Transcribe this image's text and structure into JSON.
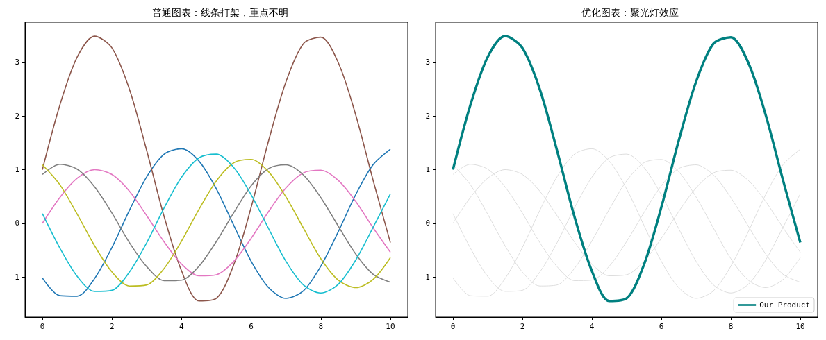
{
  "chart_data": [
    {
      "type": "line",
      "title": "普通图表：线条打架，重点不明",
      "x": [
        0,
        0.5,
        1,
        1.5,
        2,
        2.5,
        3,
        3.5,
        4,
        4.5,
        5,
        5.5,
        6,
        6.5,
        7,
        7.5,
        8,
        8.5,
        9,
        9.5,
        10
      ],
      "series": [
        {
          "color": "#1f77b4",
          "values": [
            -1.02,
            -1.35,
            -1.36,
            -1.03,
            -0.45,
            0.24,
            0.87,
            1.29,
            1.39,
            1.16,
            0.64,
            -0.04,
            -0.71,
            -1.2,
            -1.4,
            -1.26,
            -0.8,
            -0.16,
            0.53,
            1.09,
            1.38
          ]
        },
        {
          "color": "#8c564b",
          "values": [
            1,
            2.2,
            3.1,
            3.49,
            3.27,
            2.5,
            1.35,
            0.12,
            -0.89,
            -1.45,
            -1.4,
            -0.77,
            0.3,
            1.54,
            2.64,
            3.35,
            3.47,
            3.0,
            2.03,
            0.81,
            -0.36
          ]
        },
        {
          "color": "#e377c2",
          "values": [
            0,
            0.48,
            0.84,
            1.0,
            0.91,
            0.6,
            0.14,
            -0.35,
            -0.76,
            -0.98,
            -0.96,
            -0.71,
            -0.28,
            0.22,
            0.66,
            0.94,
            0.99,
            0.8,
            0.41,
            -0.08,
            -0.54
          ]
        },
        {
          "color": "#7f7f7f",
          "values": [
            0.91,
            1.1,
            1.01,
            0.68,
            0.19,
            -0.36,
            -0.81,
            -1.07,
            -1.06,
            -0.8,
            -0.34,
            0.2,
            0.7,
            1.02,
            1.09,
            0.9,
            0.48,
            -0.05,
            -0.57,
            -0.95,
            -1.1
          ]
        },
        {
          "color": "#bcbd22",
          "values": [
            1.09,
            0.72,
            0.17,
            -0.42,
            -0.91,
            -1.17,
            -1.15,
            -0.84,
            -0.33,
            0.26,
            0.79,
            1.13,
            1.19,
            0.96,
            0.49,
            -0.09,
            -0.66,
            -1.06,
            -1.2,
            -1.05,
            -0.64
          ]
        },
        {
          "color": "#17becf",
          "values": [
            0.18,
            -0.46,
            -0.99,
            -1.27,
            -1.25,
            -0.91,
            -0.36,
            0.29,
            0.86,
            1.22,
            1.29,
            1.04,
            0.53,
            -0.1,
            -0.71,
            -1.15,
            -1.3,
            -1.14,
            -0.69,
            -0.08,
            0.55
          ]
        }
      ],
      "xlim": [
        -0.5,
        10.5
      ],
      "ylim": [
        -1.75,
        3.75
      ],
      "xticks": [
        0,
        2,
        4,
        6,
        8,
        10
      ],
      "yticks": [
        -1,
        0,
        1,
        2,
        3
      ],
      "grid": false,
      "legend": false
    },
    {
      "type": "line",
      "title": "优化图表：聚光灯效应",
      "x": [
        0,
        0.5,
        1,
        1.5,
        2,
        2.5,
        3,
        3.5,
        4,
        4.5,
        5,
        5.5,
        6,
        6.5,
        7,
        7.5,
        8,
        8.5,
        9,
        9.5,
        10
      ],
      "series": [
        {
          "color": "#dddddd",
          "values": [
            -1.02,
            -1.35,
            -1.36,
            -1.03,
            -0.45,
            0.24,
            0.87,
            1.29,
            1.39,
            1.16,
            0.64,
            -0.04,
            -0.71,
            -1.2,
            -1.4,
            -1.26,
            -0.8,
            -0.16,
            0.53,
            1.09,
            1.38
          ]
        },
        {
          "color": "#dddddd",
          "values": [
            0,
            0.48,
            0.84,
            1.0,
            0.91,
            0.6,
            0.14,
            -0.35,
            -0.76,
            -0.98,
            -0.96,
            -0.71,
            -0.28,
            0.22,
            0.66,
            0.94,
            0.99,
            0.8,
            0.41,
            -0.08,
            -0.54
          ]
        },
        {
          "color": "#dddddd",
          "values": [
            0.91,
            1.1,
            1.01,
            0.68,
            0.19,
            -0.36,
            -0.81,
            -1.07,
            -1.06,
            -0.8,
            -0.34,
            0.2,
            0.7,
            1.02,
            1.09,
            0.9,
            0.48,
            -0.05,
            -0.57,
            -0.95,
            -1.1
          ]
        },
        {
          "color": "#dddddd",
          "values": [
            1.09,
            0.72,
            0.17,
            -0.42,
            -0.91,
            -1.17,
            -1.15,
            -0.84,
            -0.33,
            0.26,
            0.79,
            1.13,
            1.19,
            0.96,
            0.49,
            -0.09,
            -0.66,
            -1.06,
            -1.2,
            -1.05,
            -0.64
          ]
        },
        {
          "color": "#dddddd",
          "values": [
            0.18,
            -0.46,
            -0.99,
            -1.27,
            -1.25,
            -0.91,
            -0.36,
            0.29,
            0.86,
            1.22,
            1.29,
            1.04,
            0.53,
            -0.1,
            -0.71,
            -1.15,
            -1.3,
            -1.14,
            -0.69,
            -0.08,
            0.55
          ]
        },
        {
          "name": "Our Product",
          "color": "#008080",
          "values": [
            1,
            2.2,
            3.1,
            3.49,
            3.27,
            2.5,
            1.35,
            0.12,
            -0.89,
            -1.45,
            -1.4,
            -0.77,
            0.3,
            1.54,
            2.64,
            3.35,
            3.47,
            3.0,
            2.03,
            0.81,
            -0.36
          ]
        }
      ],
      "xlim": [
        -0.5,
        10.5
      ],
      "ylim": [
        -1.75,
        3.75
      ],
      "xticks": [
        0,
        2,
        4,
        6,
        8,
        10
      ],
      "yticks": [
        -1,
        0,
        1,
        2,
        3
      ],
      "grid": false,
      "legend": "bottom right"
    }
  ]
}
